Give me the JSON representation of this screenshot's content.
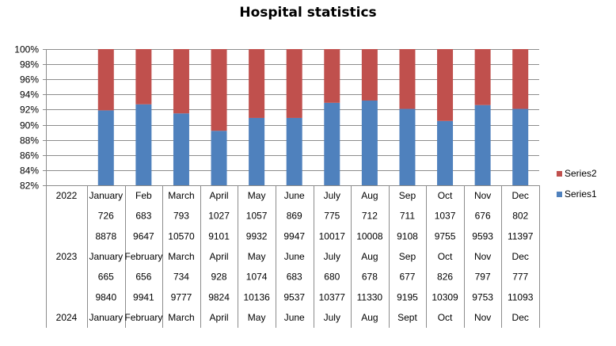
{
  "chart_data": {
    "type": "bar",
    "stacked": "percent",
    "title": "Hospital statistics",
    "ylim": [
      "82%",
      "100%"
    ],
    "y_ticks": [
      "82%",
      "84%",
      "86%",
      "88%",
      "90%",
      "92%",
      "94%",
      "96%",
      "98%",
      "100%"
    ],
    "y_tick_values": [
      82,
      84,
      86,
      88,
      90,
      92,
      94,
      96,
      98,
      100
    ],
    "legend_position": "right",
    "grid": true,
    "categories": [
      "January",
      "Feb",
      "March",
      "April",
      "May",
      "June",
      "July",
      "Aug",
      "Sep",
      "Oct",
      "Nov",
      "Dec"
    ],
    "series": [
      {
        "name": "Series1",
        "color": "#4f81bd",
        "values": [
          91.9,
          92.7,
          91.5,
          89.2,
          90.9,
          90.9,
          92.9,
          93.2,
          92.1,
          90.5,
          92.6,
          92.1
        ]
      },
      {
        "name": "Series2",
        "color": "#c0504d",
        "values": [
          8.1,
          7.3,
          8.5,
          10.8,
          9.1,
          9.1,
          7.1,
          6.8,
          7.9,
          9.5,
          7.4,
          7.9
        ]
      }
    ],
    "table": {
      "rows": [
        [
          "2022",
          "January",
          "Feb",
          "March",
          "April",
          "May",
          "June",
          "July",
          "Aug",
          "Sep",
          "Oct",
          "Nov",
          "Dec"
        ],
        [
          "",
          "726",
          "683",
          "793",
          "1027",
          "1057",
          "869",
          "775",
          "712",
          "711",
          "1037",
          "676",
          "802"
        ],
        [
          "",
          "8878",
          "9647",
          "10570",
          "9101",
          "9932",
          "9947",
          "10017",
          "10008",
          "9108",
          "9755",
          "9593",
          "11397"
        ],
        [
          "2023",
          "January",
          "February",
          "March",
          "April",
          "May",
          "June",
          "July",
          "Aug",
          "Sep",
          "Oct",
          "Nov",
          "Dec"
        ],
        [
          "",
          "665",
          "656",
          "734",
          "928",
          "1074",
          "683",
          "680",
          "678",
          "677",
          "826",
          "797",
          "777"
        ],
        [
          "",
          "9840",
          "9941",
          "9777",
          "9824",
          "10136",
          "9537",
          "10377",
          "11330",
          "9195",
          "10309",
          "9753",
          "11093"
        ],
        [
          "2024",
          "January",
          "February",
          "March",
          "April",
          "May",
          "June",
          "July",
          "Aug",
          "Sept",
          "Oct",
          "Nov",
          "Dec"
        ]
      ]
    }
  }
}
